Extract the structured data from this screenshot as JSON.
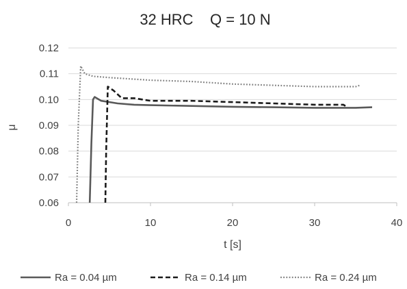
{
  "chart_data": {
    "type": "line",
    "title": "32 HRC    Q = 10 N",
    "xlabel": "t [s]",
    "ylabel": "μ",
    "xlim": [
      0,
      40
    ],
    "ylim": [
      0.06,
      0.12
    ],
    "xticks": [
      0,
      10,
      20,
      30,
      40
    ],
    "yticks": [
      0.06,
      0.07,
      0.08,
      0.09,
      0.1,
      0.11,
      0.12
    ],
    "xtick_labels": [
      "0",
      "10",
      "20",
      "30",
      "40"
    ],
    "ytick_labels": [
      "0.06",
      "0.07",
      "0.08",
      "0.09",
      "0.10",
      "0.11",
      "0.12"
    ],
    "grid": "horizontal",
    "legend_position": "bottom",
    "series": [
      {
        "name": "Ra = 0.04 µm",
        "style": "solid",
        "color": "#595959",
        "points": [
          [
            2.6,
            0.06
          ],
          [
            2.8,
            0.083
          ],
          [
            3.0,
            0.1
          ],
          [
            3.2,
            0.101
          ],
          [
            4,
            0.0995
          ],
          [
            6,
            0.0985
          ],
          [
            8,
            0.098
          ],
          [
            10,
            0.0978
          ],
          [
            15,
            0.0975
          ],
          [
            20,
            0.0972
          ],
          [
            25,
            0.097
          ],
          [
            30,
            0.0968
          ],
          [
            35,
            0.0968
          ],
          [
            37,
            0.097
          ]
        ]
      },
      {
        "name": "Ra = 0.14 µm",
        "style": "dash",
        "color": "#1a1a1a",
        "points": [
          [
            4.5,
            0.06
          ],
          [
            4.6,
            0.08
          ],
          [
            4.8,
            0.105
          ],
          [
            5.5,
            0.1035
          ],
          [
            6.5,
            0.1005
          ],
          [
            8,
            0.1005
          ],
          [
            10,
            0.0995
          ],
          [
            15,
            0.0995
          ],
          [
            20,
            0.099
          ],
          [
            25,
            0.0985
          ],
          [
            30,
            0.098
          ],
          [
            33.5,
            0.098
          ],
          [
            34,
            0.097
          ]
        ]
      },
      {
        "name": "Ra = 0.24 µm",
        "style": "dot",
        "color": "#7f7f7f",
        "points": [
          [
            1.0,
            0.06
          ],
          [
            1.2,
            0.09
          ],
          [
            1.5,
            0.113
          ],
          [
            2.0,
            0.11
          ],
          [
            3,
            0.109
          ],
          [
            5,
            0.1085
          ],
          [
            10,
            0.1075
          ],
          [
            15,
            0.107
          ],
          [
            20,
            0.106
          ],
          [
            25,
            0.1055
          ],
          [
            30,
            0.105
          ],
          [
            35,
            0.105
          ],
          [
            35.5,
            0.1055
          ]
        ]
      }
    ]
  }
}
